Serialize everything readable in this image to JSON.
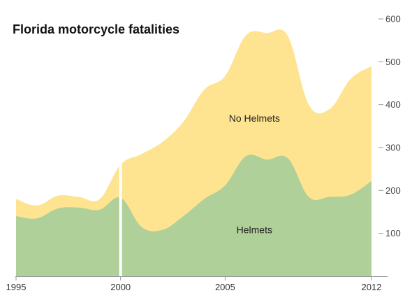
{
  "chart_data": {
    "type": "area",
    "stacked": true,
    "title": "Florida motorcycle fatalities",
    "xlabel": "",
    "ylabel": "",
    "x": [
      1995,
      1996,
      1997,
      1998,
      1999,
      2000,
      2001,
      2002,
      2003,
      2004,
      2005,
      2006,
      2007,
      2008,
      2009,
      2010,
      2011,
      2012
    ],
    "x_ticks": [
      "1995",
      "2000",
      "2005",
      "2012"
    ],
    "y_ticks": [
      "100",
      "200",
      "300",
      "400",
      "500",
      "600"
    ],
    "xlim": [
      1995,
      2012
    ],
    "ylim": [
      0,
      600
    ],
    "grid": false,
    "series": [
      {
        "name": "Helmets",
        "values": [
          140,
          135,
          158,
          160,
          155,
          183,
          115,
          108,
          140,
          180,
          212,
          280,
          272,
          275,
          185,
          185,
          190,
          222
        ]
      },
      {
        "name": "No Helmets",
        "values": [
          40,
          30,
          30,
          25,
          25,
          77,
          170,
          205,
          220,
          255,
          255,
          282,
          295,
          285,
          215,
          205,
          270,
          268
        ]
      }
    ],
    "annotations": [
      {
        "text": "No Helmets",
        "x": 2006.4,
        "y": 360
      },
      {
        "text": "Helmets",
        "x": 2006.4,
        "y": 100
      }
    ],
    "marker_line_x": 2000,
    "colors": {
      "Helmets": "#b0d09a",
      "No Helmets": "#fee490",
      "axis": "#999999",
      "marker": "#ffffff"
    }
  }
}
